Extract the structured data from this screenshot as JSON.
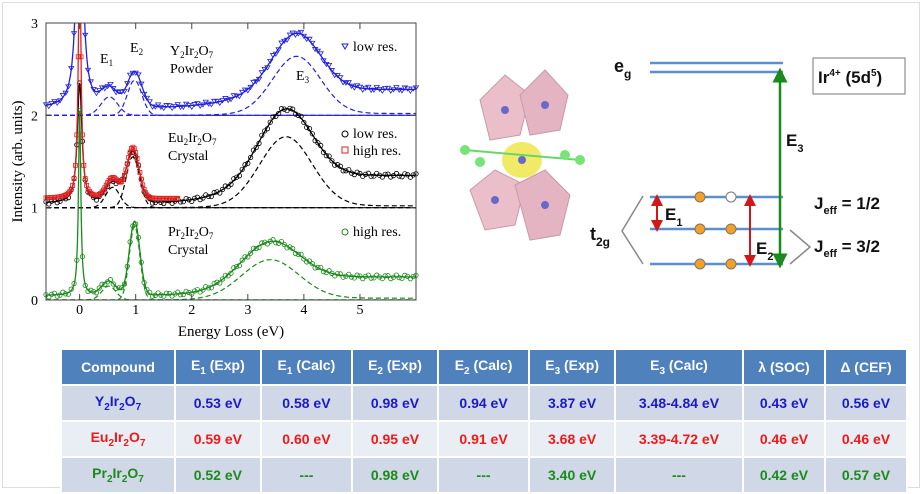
{
  "chart_data": {
    "type": "line",
    "xlabel": "Energy Loss (eV)",
    "ylabel": "Intensity (arb. units)",
    "xlim": [
      -0.6,
      6
    ],
    "ylim": [
      0,
      3
    ],
    "xticks": [
      "0",
      "1",
      "2",
      "3",
      "4",
      "5"
    ],
    "yticks": [
      "0",
      "1",
      "2",
      "3"
    ],
    "peak_labels": {
      "e1": "E",
      "e2": "E",
      "e3": "E",
      "s1": "1",
      "s2": "2",
      "s3": "3"
    },
    "series": [
      {
        "name": "Y2Ir2O7 Powder",
        "label1": "Y",
        "label2": "Ir",
        "label3": "O",
        "sub1": "2",
        "sub2": "2",
        "sub3": "7",
        "label_line2": "Powder",
        "legend": [
          "low res."
        ],
        "color": "#2020e0",
        "offset": 2,
        "elastic": {
          "amp": 3,
          "width": 0.12
        },
        "peaks": [
          {
            "e": 0.53,
            "amp": 0.2,
            "w": 0.35
          },
          {
            "e": 0.98,
            "amp": 0.38,
            "w": 0.3
          },
          {
            "e": 3.87,
            "amp": 0.62,
            "w": 1.0
          }
        ],
        "bg": 0.2
      },
      {
        "name": "Eu2Ir2O7 Crystal",
        "label1": "Eu",
        "label2": "Ir",
        "label3": "O",
        "sub1": "2",
        "sub2": "2",
        "sub3": "7",
        "label_line2": "Crystal",
        "legend": [
          "low res.",
          "high res."
        ],
        "color": "#000000",
        "color2": "#e02020",
        "offset": 1,
        "elastic": {
          "amp": 1.3,
          "width": 0.1
        },
        "peaks": [
          {
            "e": 0.59,
            "amp": 0.22,
            "w": 0.3
          },
          {
            "e": 0.95,
            "amp": 0.55,
            "w": 0.28
          },
          {
            "e": 3.68,
            "amp": 0.75,
            "w": 1.1
          }
        ],
        "bg": 0.3
      },
      {
        "name": "Pr2Ir2O7 Crystal",
        "label1": "Pr",
        "label2": "Ir",
        "label3": "O",
        "sub1": "2",
        "sub2": "2",
        "sub3": "7",
        "label_line2": "Crystal",
        "legend": [
          "high res."
        ],
        "color": "#1a8a1a",
        "offset": 0,
        "elastic": {
          "amp": 2.0,
          "width": 0.05
        },
        "peaks": [
          {
            "e": 0.52,
            "amp": 0.15,
            "w": 0.3
          },
          {
            "e": 0.98,
            "amp": 0.8,
            "w": 0.22
          },
          {
            "e": 3.4,
            "amp": 0.42,
            "w": 1.2
          }
        ],
        "bg": 0.2
      }
    ]
  },
  "diagram": {
    "eg": "e",
    "eg_sub": "g",
    "t2g": "t",
    "t2g_sub": "2g",
    "ion": "Ir",
    "ion_sup": "4+",
    "ion_rest1": " (5d",
    "ion_sup2": "5",
    "ion_rest2": ")",
    "e1": "E",
    "e1s": "1",
    "e2": "E",
    "e2s": "2",
    "e3": "E",
    "e3s": "3",
    "j12": "J",
    "j12s": "eff",
    "j12v": " = 1/2",
    "j32": "J",
    "j32s": "eff",
    "j32v": " = 3/2"
  },
  "table": {
    "headers": [
      [
        "Compound",
        ""
      ],
      [
        "E",
        "1",
        " (Exp)"
      ],
      [
        "E",
        "1",
        " (Calc)"
      ],
      [
        "E",
        "2",
        " (Exp)"
      ],
      [
        "E",
        "2",
        " (Calc)"
      ],
      [
        "E",
        "3",
        " (Exp)"
      ],
      [
        "E",
        "3",
        " (Calc)"
      ],
      [
        "λ (SOC)"
      ],
      [
        "Δ (CEF)"
      ]
    ],
    "rows": [
      {
        "compound": [
          "Y",
          "2",
          "Ir",
          "2",
          "O",
          "7"
        ],
        "values": [
          "0.53 eV",
          "0.58 eV",
          "0.98 eV",
          "0.94 eV",
          "3.87 eV",
          "3.48-4.84 eV",
          "0.43 eV",
          "0.56 eV"
        ]
      },
      {
        "compound": [
          "Eu",
          "2",
          "Ir",
          "2",
          "O",
          "7"
        ],
        "values": [
          "0.59 eV",
          "0.60 eV",
          "0.95 eV",
          "0.91 eV",
          "3.68 eV",
          "3.39-4.72 eV",
          "0.46 eV",
          "0.46 eV"
        ]
      },
      {
        "compound": [
          "Pr",
          "2",
          "Ir",
          "2",
          "O",
          "7"
        ],
        "values": [
          "0.52 eV",
          "---",
          "0.98 eV",
          "---",
          "3.40 eV",
          "---",
          "0.42 eV",
          "0.57 eV"
        ]
      }
    ]
  }
}
